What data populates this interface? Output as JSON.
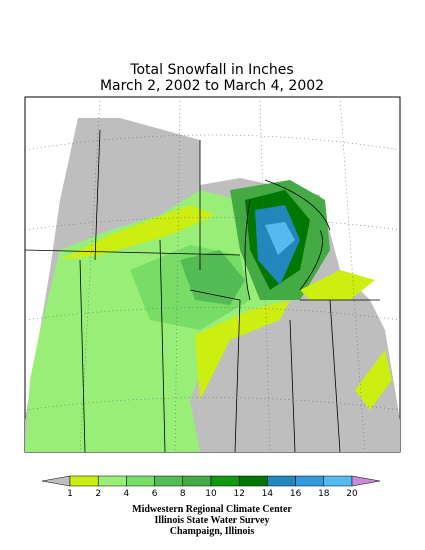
{
  "title": [
    "Total Snowfall in Inches",
    "March 2, 2002 to March 4, 2002"
  ],
  "legend": {
    "levels": [
      1,
      2,
      4,
      6,
      8,
      10,
      12,
      14,
      16,
      18,
      20
    ],
    "colors": [
      "#bebebe",
      "#ccee11",
      "#99ee77",
      "#77dd66",
      "#55bb55",
      "#44aa44",
      "#119911",
      "#007700",
      "#2288bb",
      "#3399dd",
      "#55bbee",
      "#aaddff",
      "#cc88dd"
    ]
  },
  "credits": [
    "Midwestern Regional Climate Center",
    "Illinois State Water Survey",
    "Champaign, Illinois"
  ]
}
